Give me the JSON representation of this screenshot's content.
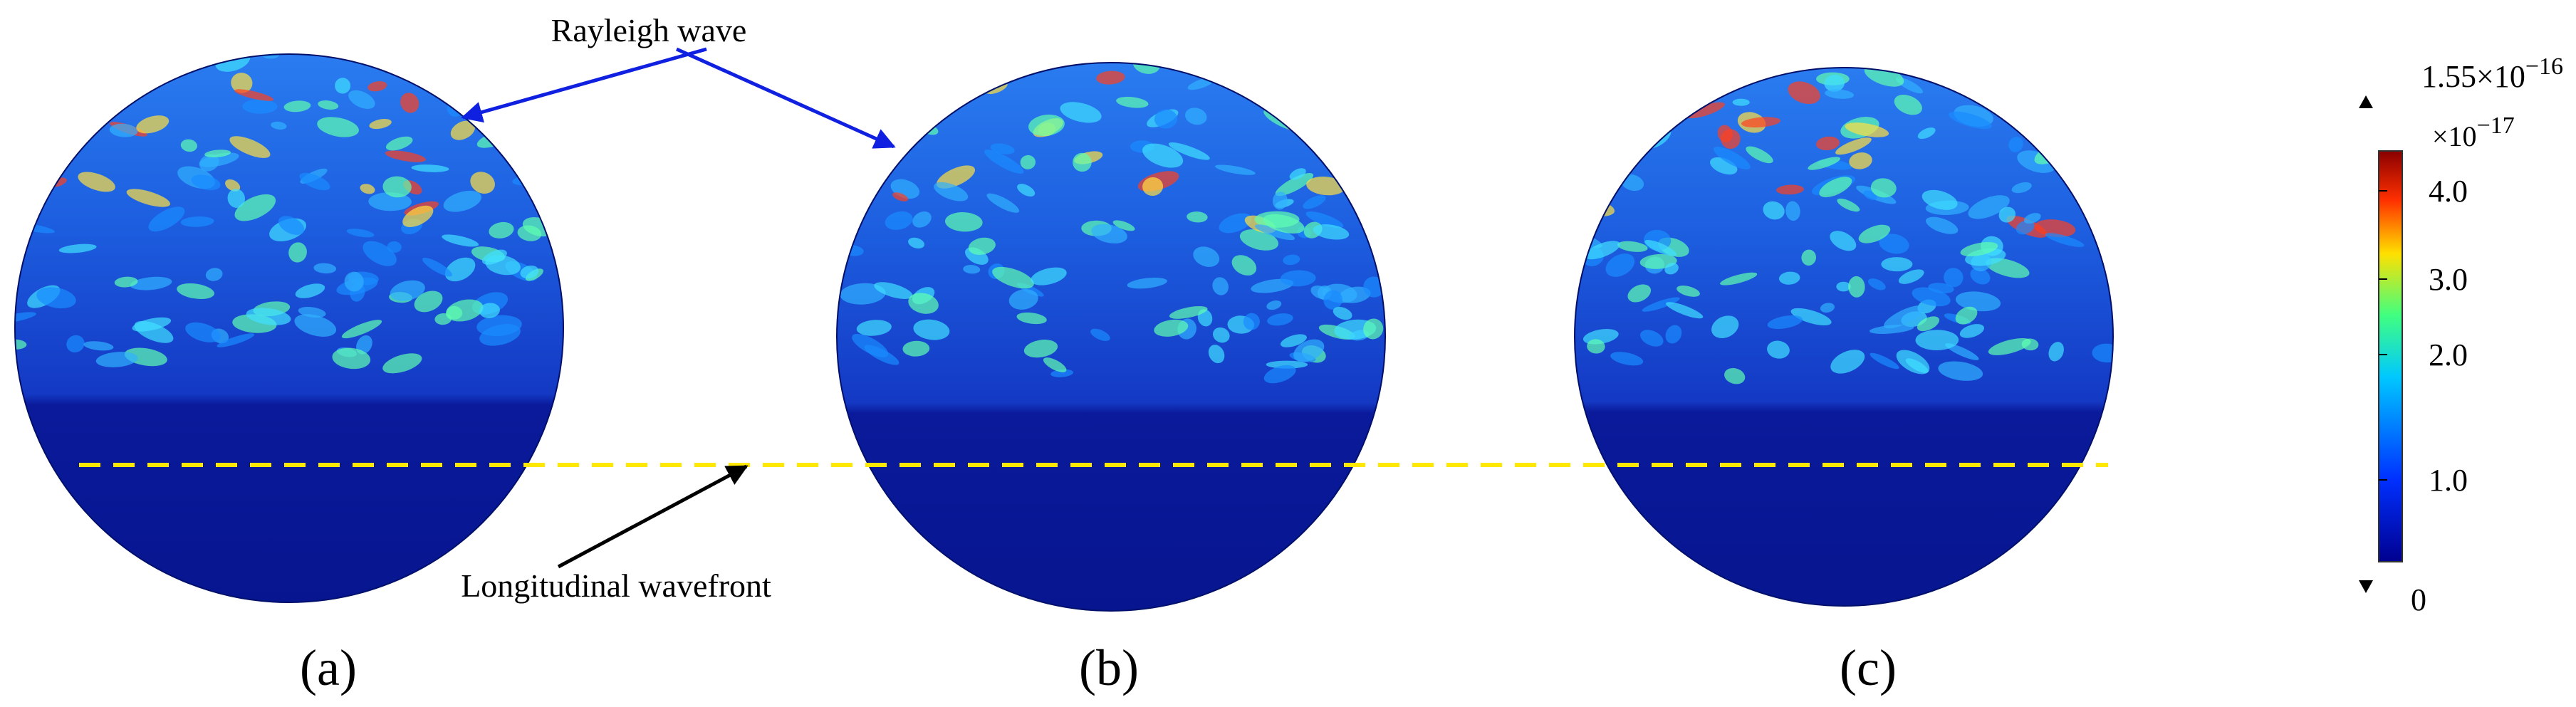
{
  "annotations": {
    "rayleigh": "Rayleigh wave",
    "longitudinal": "Longitudinal wavefront"
  },
  "panels": [
    {
      "label": "(a)"
    },
    {
      "label": "(b)"
    },
    {
      "label": "(c)"
    }
  ],
  "colorbar": {
    "max": {
      "base": "1.55×10",
      "exp": "−16"
    },
    "multiplier": {
      "base": "×10",
      "exp": "−17"
    },
    "ticks": [
      "4.0",
      "3.0",
      "2.0",
      "1.0"
    ],
    "min": "0"
  }
}
